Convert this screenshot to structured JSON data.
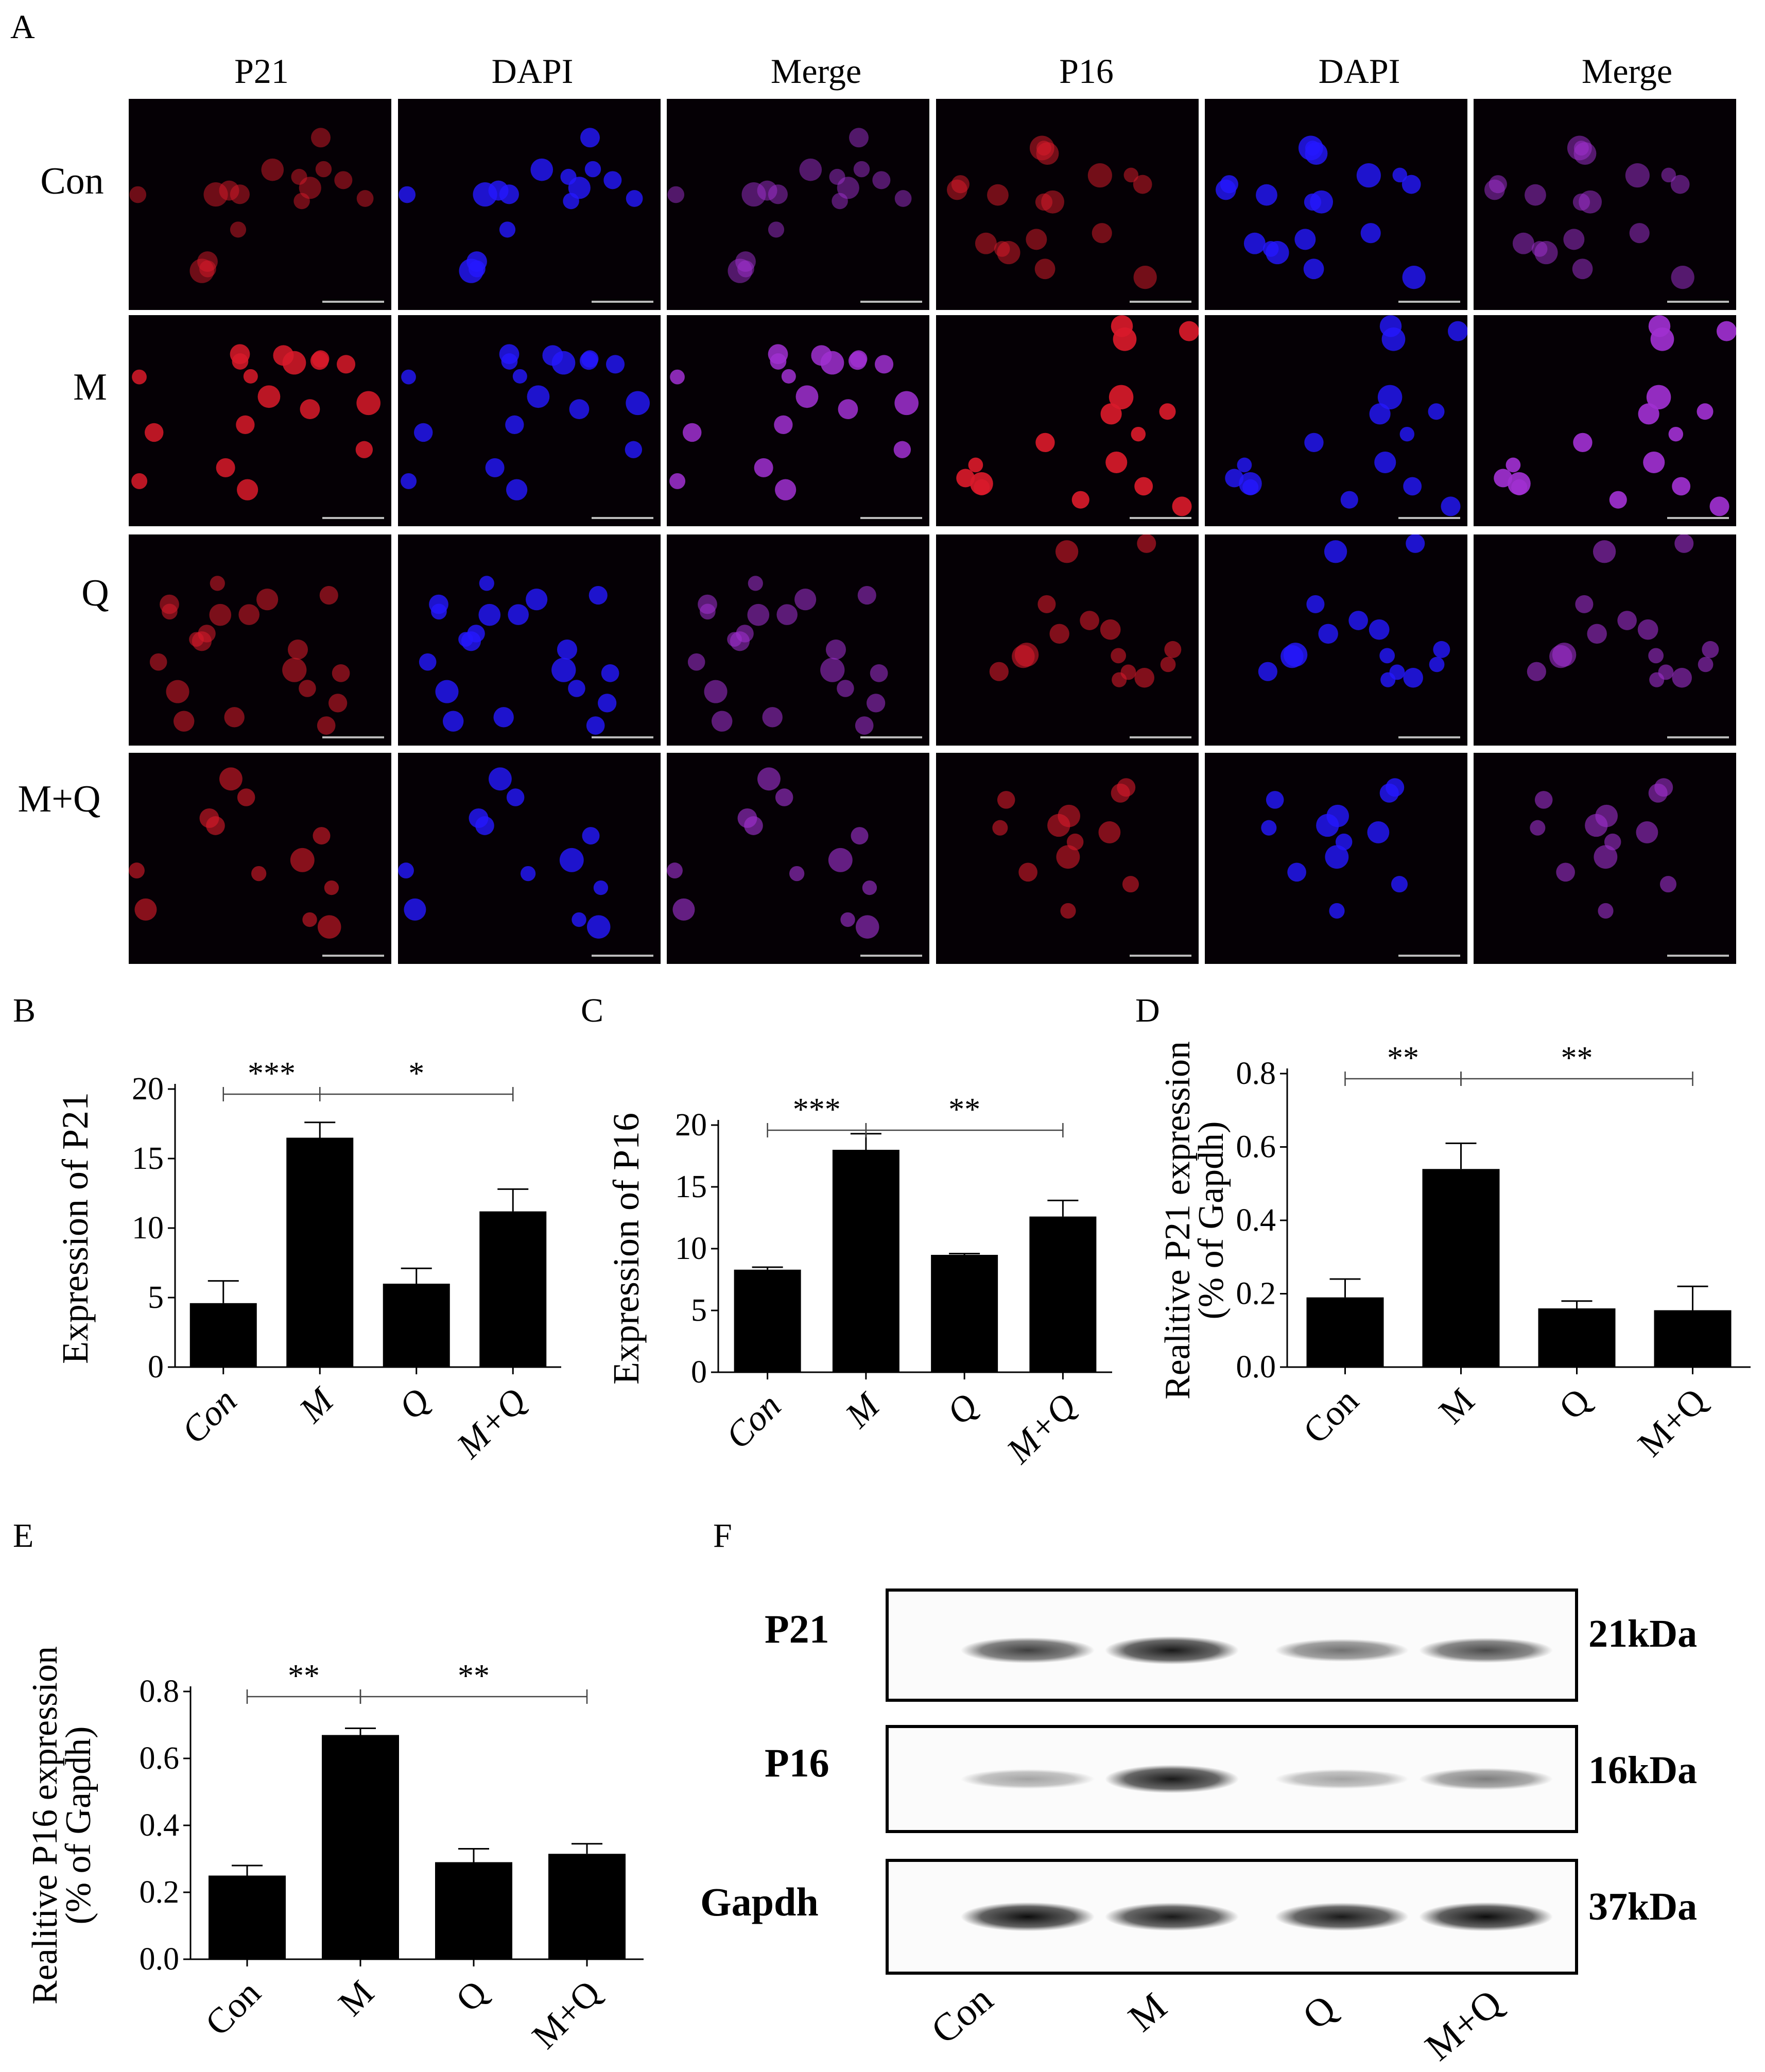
{
  "panel_letters": {
    "a": "A",
    "b": "B",
    "c": "C",
    "d": "D",
    "e": "E",
    "f": "F"
  },
  "panel_a": {
    "columns": [
      "P21",
      "DAPI",
      "Merge",
      "P16",
      "DAPI",
      "Merge"
    ],
    "rows": [
      "Con",
      "M",
      "Q",
      "M+Q"
    ],
    "channel_colors": {
      "red": "#d81a2a",
      "blue": "#2418ff",
      "merge": "#a030d0",
      "background": "#050005"
    },
    "red_intensity": [
      [
        0.25,
        0.28
      ],
      [
        0.85,
        0.95
      ],
      [
        0.35,
        0.4
      ],
      [
        0.45,
        0.4
      ]
    ]
  },
  "chart_data": [
    {
      "id": "B",
      "type": "bar",
      "categories": [
        "Con",
        "M",
        "Q",
        "M+Q"
      ],
      "values": [
        4.6,
        16.5,
        6.0,
        11.2
      ],
      "errors": [
        1.6,
        1.1,
        1.1,
        1.6
      ],
      "ylabel": "Expression of P21",
      "ylim": [
        0,
        20
      ],
      "yticks": [
        "0",
        "5",
        "10",
        "15",
        "20"
      ],
      "significance": [
        {
          "text": "***",
          "from": 0,
          "to": 1
        },
        {
          "text": "*",
          "from": 1,
          "to": 3
        }
      ]
    },
    {
      "id": "C",
      "type": "bar",
      "categories": [
        "Con",
        "M",
        "Q",
        "M+Q"
      ],
      "values": [
        8.3,
        18.0,
        9.5,
        12.6
      ],
      "errors": [
        0.2,
        1.3,
        0.1,
        1.3
      ],
      "ylabel": "Expression of P16",
      "ylim": [
        0,
        20
      ],
      "yticks": [
        "0",
        "5",
        "10",
        "15",
        "20"
      ],
      "significance": [
        {
          "text": "***",
          "from": 0,
          "to": 1
        },
        {
          "text": "**",
          "from": 1,
          "to": 3
        }
      ]
    },
    {
      "id": "D",
      "type": "bar",
      "categories": [
        "Con",
        "M",
        "Q",
        "M+Q"
      ],
      "values": [
        0.19,
        0.54,
        0.16,
        0.155
      ],
      "errors": [
        0.05,
        0.07,
        0.02,
        0.065
      ],
      "ylabel": "Realitive P21 expression",
      "ylabel2": "(% of Gapdh)",
      "ylim": [
        0,
        0.8
      ],
      "yticks": [
        "0.0",
        "0.2",
        "0.4",
        "0.6",
        "0.8"
      ],
      "significance": [
        {
          "text": "**",
          "from": 0,
          "to": 1
        },
        {
          "text": "**",
          "from": 1,
          "to": 3
        }
      ]
    },
    {
      "id": "E",
      "type": "bar",
      "categories": [
        "Con",
        "M",
        "Q",
        "M+Q"
      ],
      "values": [
        0.25,
        0.67,
        0.29,
        0.315
      ],
      "errors": [
        0.03,
        0.02,
        0.04,
        0.03
      ],
      "ylabel": "Realitive P16 expression",
      "ylabel2": "(% of Gapdh)",
      "ylim": [
        0,
        0.8
      ],
      "yticks": [
        "0.0",
        "0.2",
        "0.4",
        "0.6",
        "0.8"
      ],
      "significance": [
        {
          "text": "**",
          "from": 0,
          "to": 1
        },
        {
          "text": "**",
          "from": 1,
          "to": 3
        }
      ]
    }
  ],
  "panel_f": {
    "blots": [
      {
        "label": "P21",
        "kda": "21kDa",
        "band_strength": [
          0.75,
          0.9,
          0.55,
          0.7
        ]
      },
      {
        "label": "P16",
        "kda": "16kDa",
        "band_strength": [
          0.35,
          0.9,
          0.35,
          0.5
        ]
      },
      {
        "label": "Gapdh",
        "kda": "37kDa",
        "band_strength": [
          0.95,
          0.9,
          0.9,
          0.95
        ]
      }
    ],
    "lanes": [
      "Con",
      "M",
      "Q",
      "M+Q"
    ]
  }
}
